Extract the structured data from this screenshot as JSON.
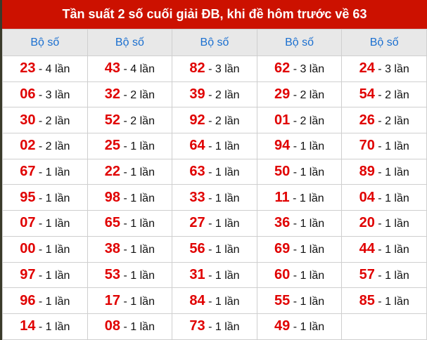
{
  "title": "Tần suất 2 số cuối giải ĐB, khi đề hôm trước về 63",
  "column_header": "Bộ số",
  "colors": {
    "title_bg": "#cc1100",
    "header_text": "#1a6fd0",
    "number": "#e00000"
  },
  "rows": [
    [
      [
        "23",
        "- 4 lần"
      ],
      [
        "43",
        "- 4 lần"
      ],
      [
        "82",
        "- 3 lần"
      ],
      [
        "62",
        "- 3 lần"
      ],
      [
        "24",
        "- 3 lần"
      ]
    ],
    [
      [
        "06",
        "- 3 lần"
      ],
      [
        "32",
        "- 2 lần"
      ],
      [
        "39",
        "- 2 lần"
      ],
      [
        "29",
        "- 2 lần"
      ],
      [
        "54",
        "- 2 lần"
      ]
    ],
    [
      [
        "30",
        "- 2 lần"
      ],
      [
        "52",
        "- 2 lần"
      ],
      [
        "92",
        "- 2 lần"
      ],
      [
        "01",
        "- 2 lần"
      ],
      [
        "26",
        "- 2 lần"
      ]
    ],
    [
      [
        "02",
        "- 2 lần"
      ],
      [
        "25",
        "- 1 lần"
      ],
      [
        "64",
        "- 1 lần"
      ],
      [
        "94",
        "- 1 lần"
      ],
      [
        "70",
        "- 1 lần"
      ]
    ],
    [
      [
        "67",
        "- 1 lần"
      ],
      [
        "22",
        "- 1 lần"
      ],
      [
        "63",
        "- 1 lần"
      ],
      [
        "50",
        "- 1 lần"
      ],
      [
        "89",
        "- 1 lần"
      ]
    ],
    [
      [
        "95",
        "- 1 lần"
      ],
      [
        "98",
        "- 1 lần"
      ],
      [
        "33",
        "- 1 lần"
      ],
      [
        "11",
        "- 1 lần"
      ],
      [
        "04",
        "- 1 lần"
      ]
    ],
    [
      [
        "07",
        "- 1 lần"
      ],
      [
        "65",
        "- 1 lần"
      ],
      [
        "27",
        "- 1 lần"
      ],
      [
        "36",
        "- 1 lần"
      ],
      [
        "20",
        "- 1 lần"
      ]
    ],
    [
      [
        "00",
        "- 1 lần"
      ],
      [
        "38",
        "- 1 lần"
      ],
      [
        "56",
        "- 1 lần"
      ],
      [
        "69",
        "- 1 lần"
      ],
      [
        "44",
        "- 1 lần"
      ]
    ],
    [
      [
        "97",
        "- 1 lần"
      ],
      [
        "53",
        "- 1 lần"
      ],
      [
        "31",
        "- 1 lần"
      ],
      [
        "60",
        "- 1 lần"
      ],
      [
        "57",
        "- 1 lần"
      ]
    ],
    [
      [
        "96",
        "- 1 lần"
      ],
      [
        "17",
        "- 1 lần"
      ],
      [
        "84",
        "- 1 lần"
      ],
      [
        "55",
        "- 1 lần"
      ],
      [
        "85",
        "- 1 lần"
      ]
    ],
    [
      [
        "14",
        "- 1 lần"
      ],
      [
        "08",
        "- 1 lần"
      ],
      [
        "73",
        "- 1 lần"
      ],
      [
        "49",
        "- 1 lần"
      ],
      null
    ]
  ]
}
